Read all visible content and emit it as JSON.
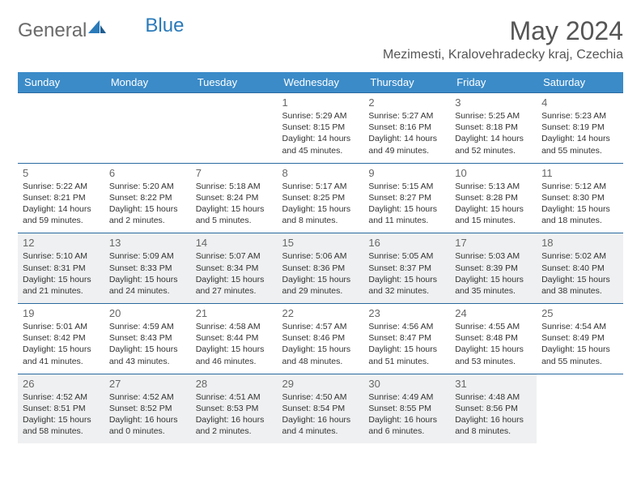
{
  "brand": {
    "part1": "General",
    "part2": "Blue"
  },
  "title": "May 2024",
  "location": "Mezimesti, Kralovehradecky kraj, Czechia",
  "colors": {
    "header_bg": "#3b8bc8",
    "header_text": "#ffffff",
    "cell_border": "#2a6aa0",
    "shaded_bg": "#eff0f1",
    "daynum_color": "#666666",
    "text_color": "#333333",
    "logo_gray": "#6a6a6a",
    "logo_blue": "#2a7ab9"
  },
  "weekdays": [
    "Sunday",
    "Monday",
    "Tuesday",
    "Wednesday",
    "Thursday",
    "Friday",
    "Saturday"
  ],
  "weeks": [
    [
      null,
      null,
      null,
      {
        "n": "1",
        "sr": "5:29 AM",
        "ss": "8:15 PM",
        "dl": "14 hours and 45 minutes."
      },
      {
        "n": "2",
        "sr": "5:27 AM",
        "ss": "8:16 PM",
        "dl": "14 hours and 49 minutes."
      },
      {
        "n": "3",
        "sr": "5:25 AM",
        "ss": "8:18 PM",
        "dl": "14 hours and 52 minutes."
      },
      {
        "n": "4",
        "sr": "5:23 AM",
        "ss": "8:19 PM",
        "dl": "14 hours and 55 minutes."
      }
    ],
    [
      {
        "n": "5",
        "sr": "5:22 AM",
        "ss": "8:21 PM",
        "dl": "14 hours and 59 minutes."
      },
      {
        "n": "6",
        "sr": "5:20 AM",
        "ss": "8:22 PM",
        "dl": "15 hours and 2 minutes."
      },
      {
        "n": "7",
        "sr": "5:18 AM",
        "ss": "8:24 PM",
        "dl": "15 hours and 5 minutes."
      },
      {
        "n": "8",
        "sr": "5:17 AM",
        "ss": "8:25 PM",
        "dl": "15 hours and 8 minutes."
      },
      {
        "n": "9",
        "sr": "5:15 AM",
        "ss": "8:27 PM",
        "dl": "15 hours and 11 minutes."
      },
      {
        "n": "10",
        "sr": "5:13 AM",
        "ss": "8:28 PM",
        "dl": "15 hours and 15 minutes."
      },
      {
        "n": "11",
        "sr": "5:12 AM",
        "ss": "8:30 PM",
        "dl": "15 hours and 18 minutes."
      }
    ],
    [
      {
        "n": "12",
        "sr": "5:10 AM",
        "ss": "8:31 PM",
        "dl": "15 hours and 21 minutes."
      },
      {
        "n": "13",
        "sr": "5:09 AM",
        "ss": "8:33 PM",
        "dl": "15 hours and 24 minutes."
      },
      {
        "n": "14",
        "sr": "5:07 AM",
        "ss": "8:34 PM",
        "dl": "15 hours and 27 minutes."
      },
      {
        "n": "15",
        "sr": "5:06 AM",
        "ss": "8:36 PM",
        "dl": "15 hours and 29 minutes."
      },
      {
        "n": "16",
        "sr": "5:05 AM",
        "ss": "8:37 PM",
        "dl": "15 hours and 32 minutes."
      },
      {
        "n": "17",
        "sr": "5:03 AM",
        "ss": "8:39 PM",
        "dl": "15 hours and 35 minutes."
      },
      {
        "n": "18",
        "sr": "5:02 AM",
        "ss": "8:40 PM",
        "dl": "15 hours and 38 minutes."
      }
    ],
    [
      {
        "n": "19",
        "sr": "5:01 AM",
        "ss": "8:42 PM",
        "dl": "15 hours and 41 minutes."
      },
      {
        "n": "20",
        "sr": "4:59 AM",
        "ss": "8:43 PM",
        "dl": "15 hours and 43 minutes."
      },
      {
        "n": "21",
        "sr": "4:58 AM",
        "ss": "8:44 PM",
        "dl": "15 hours and 46 minutes."
      },
      {
        "n": "22",
        "sr": "4:57 AM",
        "ss": "8:46 PM",
        "dl": "15 hours and 48 minutes."
      },
      {
        "n": "23",
        "sr": "4:56 AM",
        "ss": "8:47 PM",
        "dl": "15 hours and 51 minutes."
      },
      {
        "n": "24",
        "sr": "4:55 AM",
        "ss": "8:48 PM",
        "dl": "15 hours and 53 minutes."
      },
      {
        "n": "25",
        "sr": "4:54 AM",
        "ss": "8:49 PM",
        "dl": "15 hours and 55 minutes."
      }
    ],
    [
      {
        "n": "26",
        "sr": "4:52 AM",
        "ss": "8:51 PM",
        "dl": "15 hours and 58 minutes."
      },
      {
        "n": "27",
        "sr": "4:52 AM",
        "ss": "8:52 PM",
        "dl": "16 hours and 0 minutes."
      },
      {
        "n": "28",
        "sr": "4:51 AM",
        "ss": "8:53 PM",
        "dl": "16 hours and 2 minutes."
      },
      {
        "n": "29",
        "sr": "4:50 AM",
        "ss": "8:54 PM",
        "dl": "16 hours and 4 minutes."
      },
      {
        "n": "30",
        "sr": "4:49 AM",
        "ss": "8:55 PM",
        "dl": "16 hours and 6 minutes."
      },
      {
        "n": "31",
        "sr": "4:48 AM",
        "ss": "8:56 PM",
        "dl": "16 hours and 8 minutes."
      },
      null
    ]
  ],
  "labels": {
    "sunrise": "Sunrise:",
    "sunset": "Sunset:",
    "daylight": "Daylight:"
  }
}
